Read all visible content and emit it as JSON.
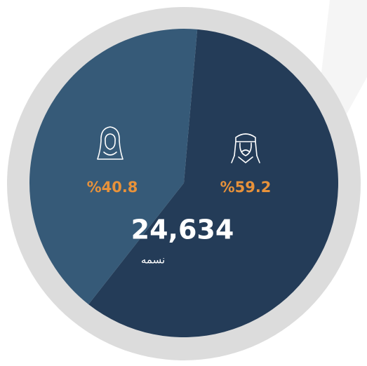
{
  "chart_data": {
    "type": "pie",
    "values": [
      59.2,
      40.8
    ],
    "value_labels": [
      "%59.2",
      "%40.8"
    ],
    "colors": [
      "#243c58",
      "#365a78"
    ],
    "annotations": [
      "24,634",
      "نسمه"
    ]
  }
}
